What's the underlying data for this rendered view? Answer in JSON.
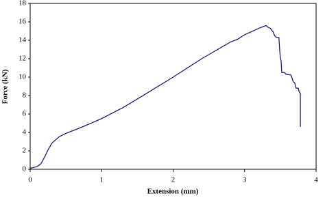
{
  "chart_data": {
    "type": "line",
    "x_label": "Extension (mm)",
    "y_label": "Force (kN)",
    "xlim": [
      0,
      4
    ],
    "xticks": [
      0,
      1,
      2,
      3,
      4
    ],
    "ylim": [
      0,
      18
    ],
    "yticks": [
      0,
      2,
      4,
      6,
      8,
      10,
      12,
      14,
      16,
      18
    ],
    "series": [
      {
        "color": "#1a1a7a",
        "x": [
          0,
          0.1,
          0.15,
          0.2,
          0.25,
          0.3,
          0.4,
          0.5,
          0.7,
          1.0,
          1.3,
          1.6,
          2.0,
          2.4,
          2.8,
          2.9,
          2.92,
          3.0,
          3.2,
          3.3,
          3.33,
          3.36,
          3.4,
          3.42,
          3.45,
          3.48,
          3.49,
          3.5,
          3.51,
          3.52,
          3.56,
          3.58,
          3.6,
          3.65,
          3.68,
          3.7,
          3.72,
          3.75,
          3.76,
          3.78,
          3.78
        ],
        "values": [
          0.1,
          0.3,
          0.6,
          1.3,
          2.1,
          2.8,
          3.5,
          3.9,
          4.5,
          5.5,
          6.7,
          8.1,
          10.0,
          12.0,
          13.8,
          14.1,
          14.2,
          14.6,
          15.3,
          15.6,
          15.4,
          15.3,
          14.9,
          14.5,
          14.3,
          14.3,
          13.0,
          12.1,
          11.8,
          10.5,
          10.5,
          10.3,
          10.3,
          10.2,
          9.5,
          9.4,
          8.8,
          8.8,
          8.5,
          8.2,
          4.6
        ]
      }
    ]
  }
}
